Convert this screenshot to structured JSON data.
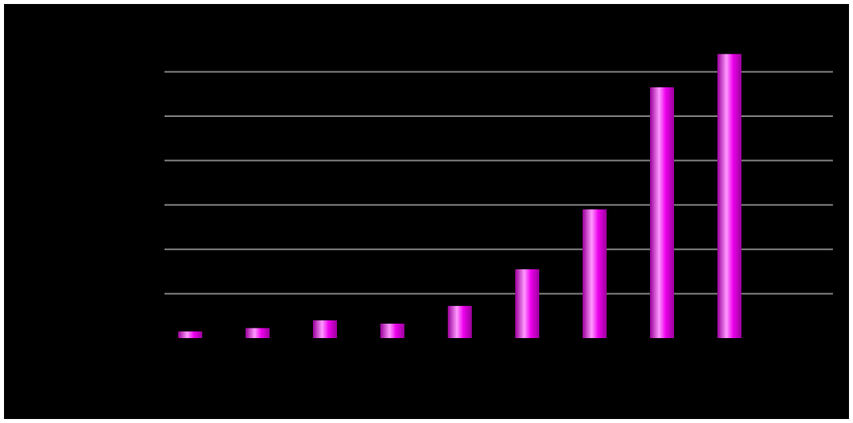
{
  "chart_data": {
    "type": "bar",
    "categories": [
      "",
      "",
      "",
      "",
      "",
      "",
      "",
      "",
      ""
    ],
    "values": [
      3,
      4.5,
      8,
      6.5,
      14.5,
      31,
      58,
      113,
      128
    ],
    "ylim": [
      0,
      150
    ],
    "yticks": [
      0,
      20,
      40,
      60,
      80,
      100,
      120
    ],
    "grid": true,
    "legend": "none",
    "title": "",
    "xlabel": "",
    "ylabel": ""
  },
  "colors": {
    "background": "#000000",
    "frame": "#ffffff",
    "grid": "#808080",
    "bar": "#ee00ee",
    "bar_highlight": "#ff99ff",
    "bar_shadow": "#990099"
  }
}
